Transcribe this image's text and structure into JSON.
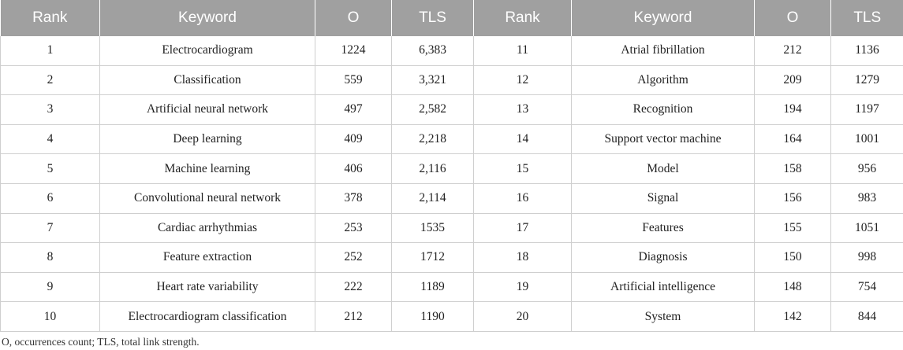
{
  "headers": [
    "Rank",
    "Keyword",
    "O",
    "TLS",
    "Rank",
    "Keyword",
    "O",
    "TLS"
  ],
  "rows": [
    [
      "1",
      "Electrocardiogram",
      "1224",
      "6,383",
      "11",
      "Atrial fibrillation",
      "212",
      "1136"
    ],
    [
      "2",
      "Classification",
      "559",
      "3,321",
      "12",
      "Algorithm",
      "209",
      "1279"
    ],
    [
      "3",
      "Artificial neural network",
      "497",
      "2,582",
      "13",
      "Recognition",
      "194",
      "1197"
    ],
    [
      "4",
      "Deep learning",
      "409",
      "2,218",
      "14",
      "Support vector machine",
      "164",
      "1001"
    ],
    [
      "5",
      "Machine learning",
      "406",
      "2,116",
      "15",
      "Model",
      "158",
      "956"
    ],
    [
      "6",
      "Convolutional neural network",
      "378",
      "2,114",
      "16",
      "Signal",
      "156",
      "983"
    ],
    [
      "7",
      "Cardiac arrhythmias",
      "253",
      "1535",
      "17",
      "Features",
      "155",
      "1051"
    ],
    [
      "8",
      "Feature extraction",
      "252",
      "1712",
      "18",
      "Diagnosis",
      "150",
      "998"
    ],
    [
      "9",
      "Heart rate variability",
      "222",
      "1189",
      "19",
      "Artificial intelligence",
      "148",
      "754"
    ],
    [
      "10",
      "Electrocardiogram classification",
      "212",
      "1190",
      "20",
      "System",
      "142",
      "844"
    ]
  ],
  "footnote": "O, occurrences count; TLS, total link strength."
}
